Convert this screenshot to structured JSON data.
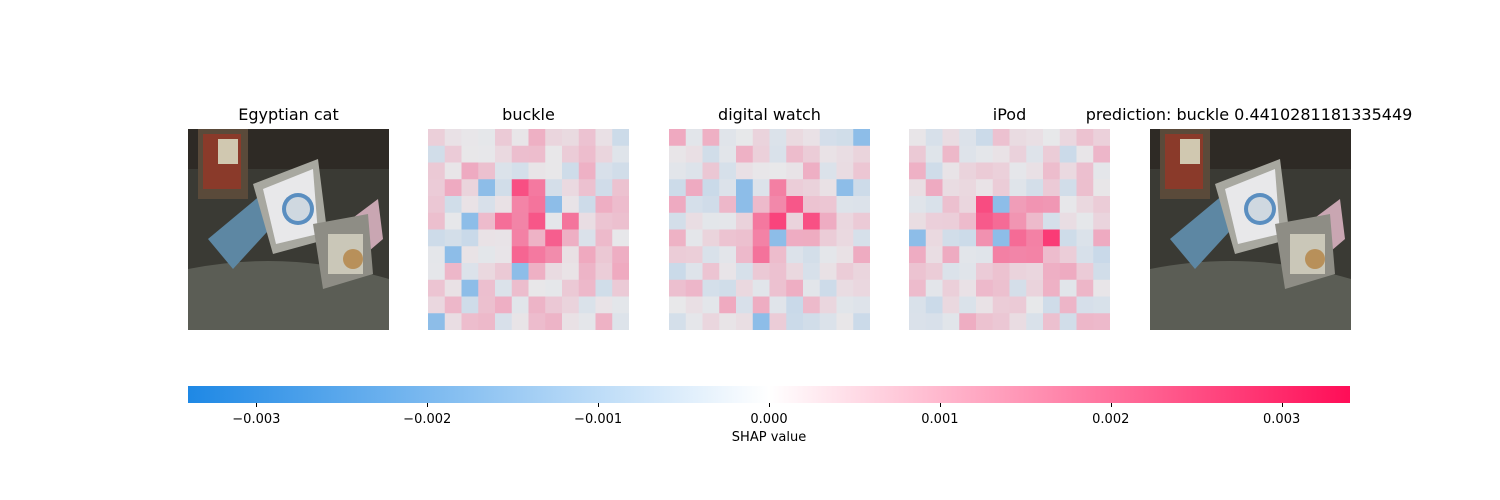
{
  "chart_data": {
    "type": "heatmap",
    "panels": [
      {
        "title": "Egyptian cat",
        "kind": "image"
      },
      {
        "title": "buckle",
        "kind": "shap"
      },
      {
        "title": "digital watch",
        "kind": "shap"
      },
      {
        "title": "iPod",
        "kind": "shap"
      },
      {
        "title": "prediction: buckle 0.4410281181335449",
        "kind": "image"
      }
    ],
    "colorbar": {
      "label": "SHAP value",
      "range": [
        -0.0034,
        0.0034
      ],
      "ticks": [
        -0.003,
        -0.002,
        -0.001,
        0.0,
        0.001,
        0.002,
        0.003
      ],
      "tick_labels": [
        "−0.003",
        "−0.002",
        "−0.001",
        "0.000",
        "0.001",
        "0.002",
        "0.003"
      ],
      "negative_color": "#1e88e5",
      "positive_color": "#ff0d57"
    },
    "grid_size": 12
  }
}
